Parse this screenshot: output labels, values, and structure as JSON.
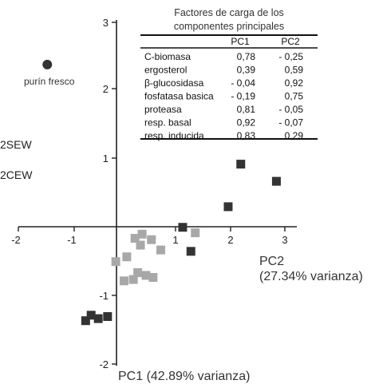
{
  "chart_data": {
    "type": "scatter",
    "xlim": [
      -2,
      3
    ],
    "ylim": [
      -2,
      3
    ],
    "x_ticks": [
      "-2",
      "-1",
      "1",
      "2",
      "3"
    ],
    "y_ticks": [
      "3",
      "2",
      "1",
      "-1",
      "-2"
    ],
    "xlabel": "PC1 (42.89% varianza)",
    "ylabel_line1": "PC2",
    "ylabel_line2": "(27.34% varianza)",
    "annotation": "purín fresco",
    "side_labels": [
      "2SEW",
      "2CEW"
    ],
    "grid": false,
    "colors": {
      "dark": "#333333",
      "light": "#a8a8a8",
      "circle": "#333333"
    },
    "series": [
      {
        "marker": "circle",
        "points": [
          [
            -1.35,
            2.35
          ]
        ]
      },
      {
        "marker": "square",
        "points": [
          [
            2.18,
            0.9
          ],
          [
            2.83,
            0.65
          ],
          [
            1.95,
            0.28
          ],
          [
            1.12,
            -0.02
          ],
          [
            1.27,
            -0.37
          ],
          [
            -0.65,
            -1.38
          ],
          [
            -0.55,
            -1.3
          ],
          [
            -0.42,
            -1.35
          ],
          [
            -0.25,
            -1.32
          ]
        ]
      },
      {
        "marker": "square",
        "points": [
          [
            1.35,
            -0.1
          ],
          [
            0.25,
            -0.18
          ],
          [
            0.38,
            -0.12
          ],
          [
            0.55,
            -0.2
          ],
          [
            0.35,
            -0.28
          ],
          [
            0.72,
            -0.35
          ],
          [
            0.1,
            -0.45
          ],
          [
            -0.1,
            -0.52
          ],
          [
            0.3,
            -0.68
          ],
          [
            0.45,
            -0.72
          ],
          [
            0.22,
            -0.78
          ],
          [
            0.58,
            -0.75
          ],
          [
            0.05,
            -0.8
          ]
        ]
      }
    ]
  },
  "table": {
    "title_line1": "Factores de carga de los",
    "title_line2": "componentes principales",
    "headers": [
      "PC1",
      "PC2"
    ],
    "rows": [
      {
        "label": "C-biomasa",
        "pc1": "0,78",
        "pc2": "- 0,25"
      },
      {
        "label": "ergosterol",
        "pc1": "0,39",
        "pc2": "0,59"
      },
      {
        "label": "β-glucosidasa",
        "pc1": "- 0,04",
        "pc2": "0,92"
      },
      {
        "label": "fosfatasa basica",
        "pc1": "- 0,19",
        "pc2": "0,75"
      },
      {
        "label": "proteasa",
        "pc1": "0,81",
        "pc2": "- 0,05"
      },
      {
        "label": "resp. basal",
        "pc1": "0,92",
        "pc2": "- 0,07"
      },
      {
        "label": "resp. inducida",
        "pc1": "0,83",
        "pc2": "0,29"
      }
    ]
  }
}
